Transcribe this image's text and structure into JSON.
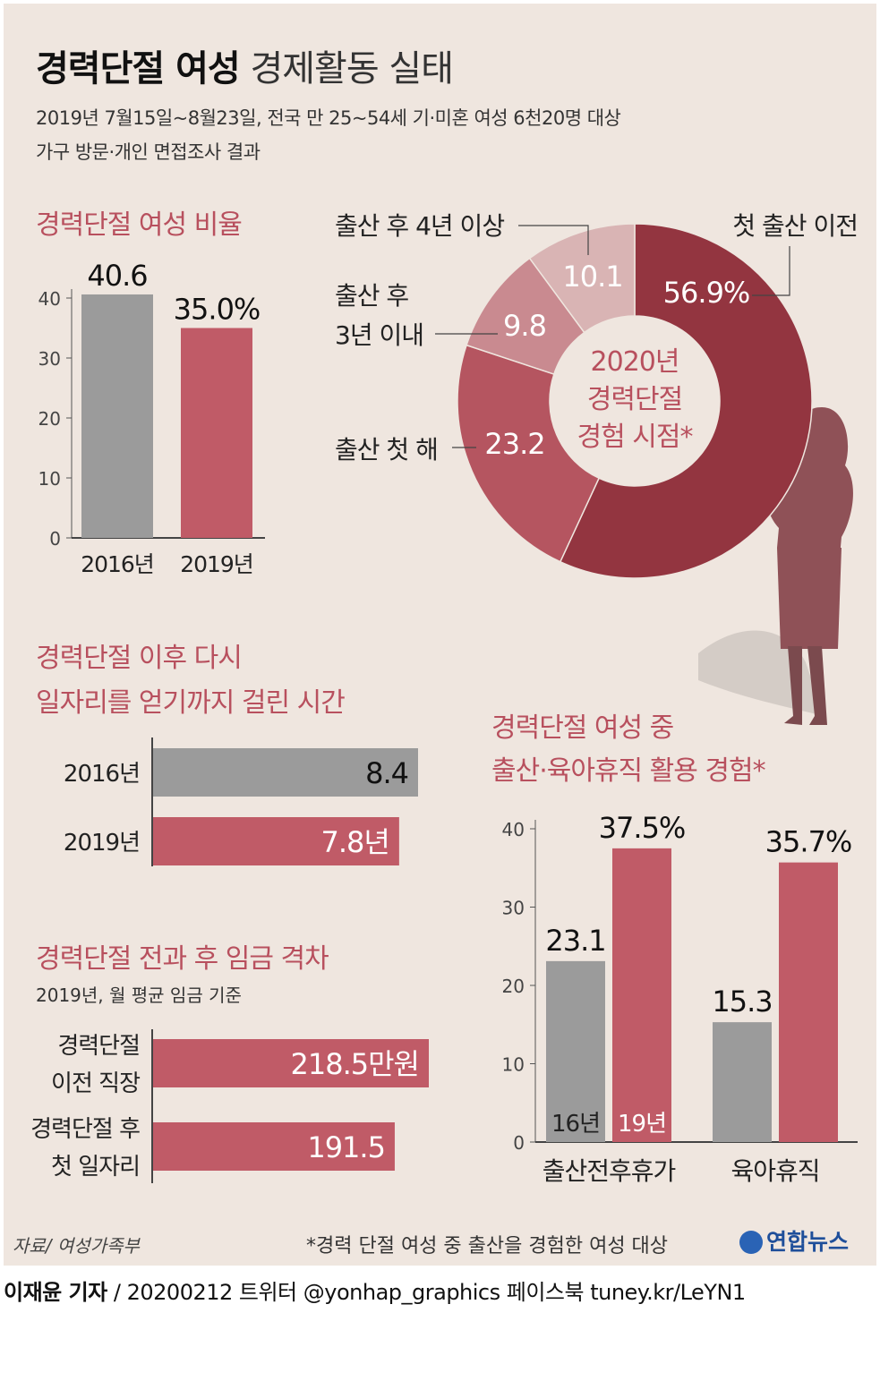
{
  "title": {
    "bold": "경력단절 여성",
    "normal": "경제활동 실태"
  },
  "subtitle_lines": [
    "2019년 7월15일~8월23일, 전국 만 25~54세 기·미혼 여성 6천20명 대상",
    "가구 방문·개인 면접조사 결과"
  ],
  "colors": {
    "gray": "#9b9b9b",
    "pink": "#c05b67",
    "dark": "#933540",
    "mid": "#b55560",
    "light": "#c98a90",
    "pale": "#d9b4b4",
    "accent": "#b8505e"
  },
  "charts": {
    "ratio": {
      "type": "bar",
      "title": "경력단절 여성 비율",
      "categories": [
        "2016년",
        "2019년"
      ],
      "values": [
        40.6,
        35.0
      ],
      "labels": [
        "40.6",
        "35.0%"
      ],
      "yticks": [
        "0",
        "10",
        "20",
        "30",
        "40"
      ],
      "ylim": [
        0,
        40
      ]
    },
    "timing": {
      "type": "pie",
      "center_lines": [
        "2020년",
        "경력단절",
        "경험 시점*"
      ],
      "slices": [
        {
          "label": "첫 출산 이전",
          "value": 56.9,
          "text": "56.9%"
        },
        {
          "label": "출산 첫 해",
          "value": 23.2,
          "text": "23.2"
        },
        {
          "label": "출산 후 3년 이내",
          "label_lines": [
            "출산 후",
            "3년 이내"
          ],
          "value": 9.8,
          "text": "9.8"
        },
        {
          "label": "출산 후 4년 이상",
          "value": 10.1,
          "text": "10.1"
        }
      ]
    },
    "reemploy": {
      "type": "bar",
      "title_lines": [
        "경력단절 이후 다시",
        "일자리를 얻기까지 걸린 시간"
      ],
      "categories": [
        "2016년",
        "2019년"
      ],
      "values": [
        8.4,
        7.8
      ],
      "labels": [
        "8.4",
        "7.8년"
      ]
    },
    "wage": {
      "type": "bar",
      "title": "경력단절 전과 후 임금 격차",
      "subtitle": "2019년, 월 평균 임금 기준",
      "categories": [
        "경력단절 이전 직장",
        "경력단절 후 첫 일자리"
      ],
      "category_lines": [
        [
          "경력단절",
          "이전 직장"
        ],
        [
          "경력단절 후",
          "첫 일자리"
        ]
      ],
      "values": [
        218.5,
        191.5
      ],
      "labels": [
        "218.5만원",
        "191.5"
      ]
    },
    "leave": {
      "type": "bar",
      "title_lines": [
        "경력단절 여성 중",
        "출산·육아휴직 활용 경험*"
      ],
      "categories": [
        "출산전후휴가",
        "육아휴직"
      ],
      "series": [
        {
          "name": "16년",
          "values": [
            23.1,
            15.3
          ],
          "labels": [
            "23.1",
            "15.3"
          ]
        },
        {
          "name": "19년",
          "values": [
            37.5,
            35.7
          ],
          "labels": [
            "37.5%",
            "35.7%"
          ]
        }
      ],
      "yticks": [
        "0",
        "10",
        "20",
        "30",
        "40"
      ],
      "ylim": [
        0,
        40
      ]
    }
  },
  "source": "자료/ 여성가족부",
  "footnote": "*경력 단절 여성 중 출산을 경험한 여성 대상",
  "logo": "연합뉴스",
  "credit": {
    "reporter": "이재윤 기자",
    "rest": " / 20200212   트위터 @yonhap_graphics  페이스북 tuney.kr/LeYN1"
  }
}
